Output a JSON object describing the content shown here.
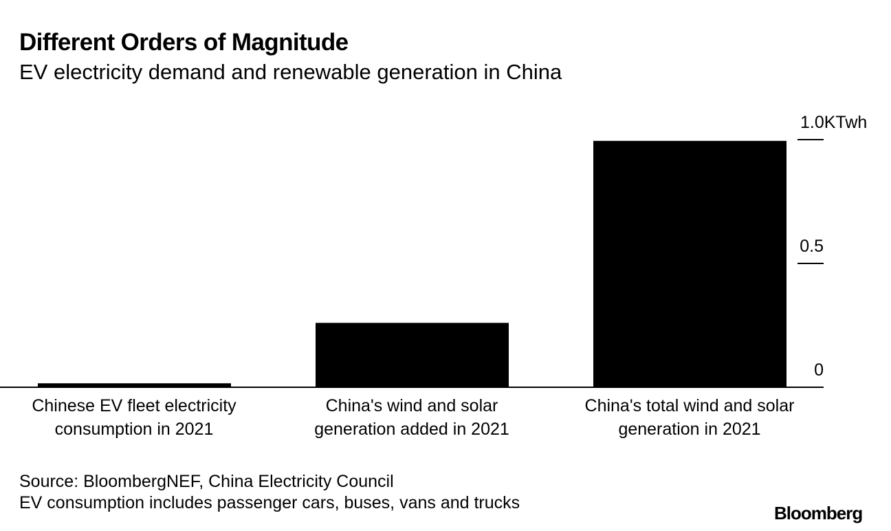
{
  "header": {
    "title": "Different Orders of Magnitude",
    "subtitle": "EV electricity demand and renewable generation in China"
  },
  "chart_data": {
    "type": "bar",
    "title": "Different Orders of Magnitude",
    "subtitle": "EV electricity demand and renewable generation in China",
    "categories": [
      "Chinese EV fleet electricity consumption in 2021",
      "China's wind and solar generation added in 2021",
      "China's total wind and solar generation in 2021"
    ],
    "category_lines": [
      [
        "Chinese EV fleet electricity",
        "consumption in 2021"
      ],
      [
        "China's wind and solar",
        "generation added in 2021"
      ],
      [
        "China's total wind and solar",
        "generation in 2021"
      ]
    ],
    "values": [
      0.016,
      0.26,
      0.995
    ],
    "xlabel": "",
    "ylabel": "",
    "unit": "KTwh",
    "ylim": [
      0,
      1.0
    ],
    "yticks": [
      {
        "value": 0,
        "label": "0"
      },
      {
        "value": 0.5,
        "label": "0.5"
      },
      {
        "value": 1.0,
        "label": "1.0KTwh"
      }
    ],
    "grid": false,
    "axis_side": "right",
    "bar_color": "#000000"
  },
  "footer": {
    "source": "Source: BloombergNEF, China Electricity Council",
    "note": "EV consumption includes passenger cars, buses, vans and trucks",
    "brand": "Bloomberg"
  }
}
